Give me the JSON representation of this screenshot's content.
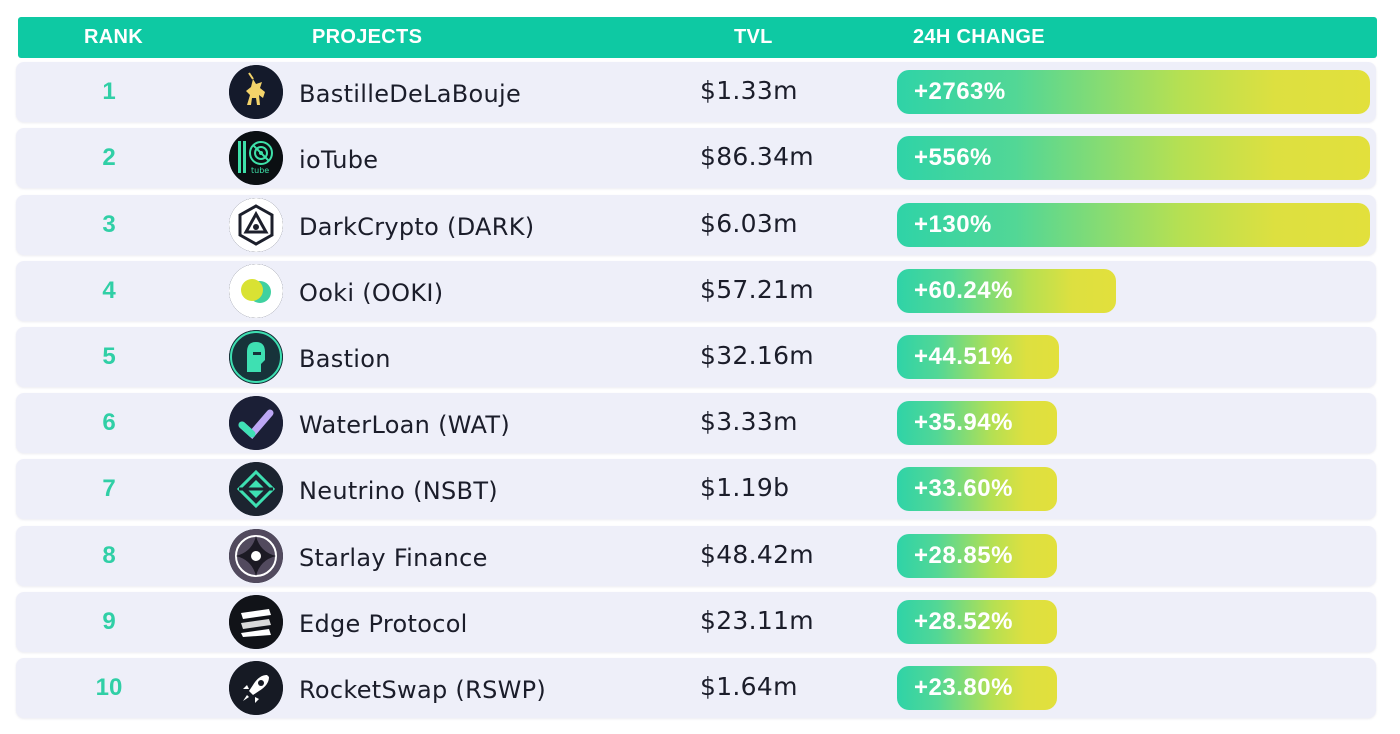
{
  "header": {
    "rank": "RANK",
    "projects": "PROJECTS",
    "tvl": "TVL",
    "change": "24H CHANGE"
  },
  "colors": {
    "header_bg": "#0ec9a3",
    "rank_text": "#30cfa6",
    "row_bg": "#eeeff9",
    "bar_start": "#2fd3a7",
    "bar_end": "#e2e03c"
  },
  "chart_data": {
    "type": "table",
    "bar_axis_max_percent": 130,
    "rows": [
      {
        "rank": "1",
        "project": "BastilleDeLaBouje",
        "tvl": "$1.33m",
        "change": "+2763%",
        "change_value": 2763,
        "logo": "unicorn-icon"
      },
      {
        "rank": "2",
        "project": "ioTube",
        "tvl": "$86.34m",
        "change": "+556%",
        "change_value": 556,
        "logo": "iotube-icon"
      },
      {
        "rank": "3",
        "project": "DarkCrypto (DARK)",
        "tvl": "$6.03m",
        "change": "+130%",
        "change_value": 130,
        "logo": "darkcrypto-icon"
      },
      {
        "rank": "4",
        "project": "Ooki (OOKI)",
        "tvl": "$57.21m",
        "change": "+60.24%",
        "change_value": 60.24,
        "logo": "ooki-icon"
      },
      {
        "rank": "5",
        "project": "Bastion",
        "tvl": "$32.16m",
        "change": "+44.51%",
        "change_value": 44.51,
        "logo": "bastion-icon"
      },
      {
        "rank": "6",
        "project": "WaterLoan (WAT)",
        "tvl": "$3.33m",
        "change": "+35.94%",
        "change_value": 35.94,
        "logo": "checkmark-icon"
      },
      {
        "rank": "7",
        "project": "Neutrino (NSBT)",
        "tvl": "$1.19b",
        "change": "+33.60%",
        "change_value": 33.6,
        "logo": "neutrino-icon"
      },
      {
        "rank": "8",
        "project": "Starlay Finance",
        "tvl": "$48.42m",
        "change": "+28.85%",
        "change_value": 28.85,
        "logo": "starlay-icon"
      },
      {
        "rank": "9",
        "project": "Edge Protocol",
        "tvl": "$23.11m",
        "change": "+28.52%",
        "change_value": 28.52,
        "logo": "edge-icon"
      },
      {
        "rank": "10",
        "project": "RocketSwap (RSWP)",
        "tvl": "$1.64m",
        "change": "+23.80%",
        "change_value": 23.8,
        "logo": "rocket-icon"
      }
    ]
  }
}
